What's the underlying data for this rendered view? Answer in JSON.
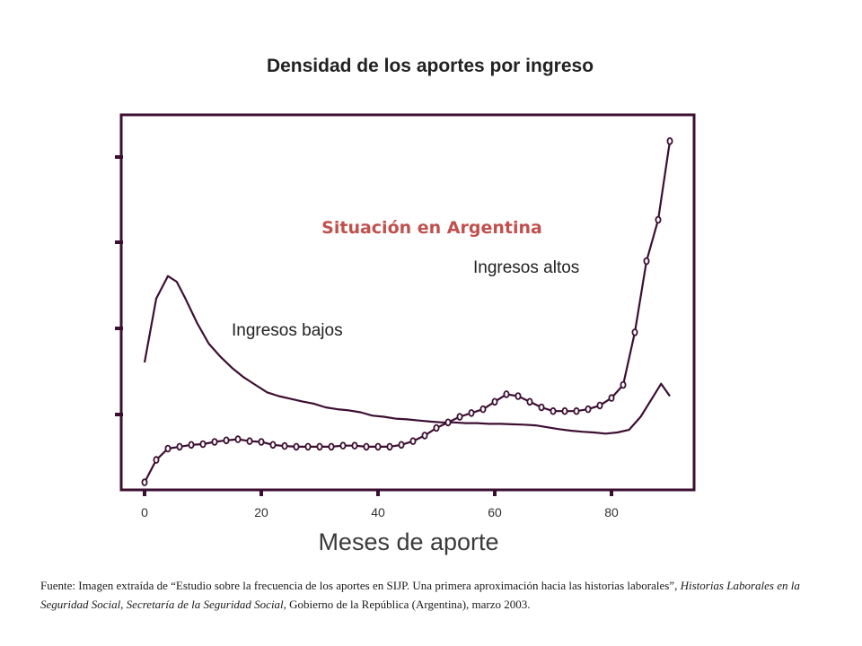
{
  "chart_data": {
    "type": "line",
    "title": "Densidad de los aportes por ingreso",
    "subtitle": "Situación en Argentina",
    "xlabel": "Meses de aporte",
    "ylabel": "",
    "x_ticks": [
      "0",
      "20",
      "40",
      "60",
      "80"
    ],
    "xlim": [
      0,
      92
    ],
    "ylim": [
      0,
      1
    ],
    "y_ticks_labeled": false,
    "colors": {
      "axes": "#3c0f32",
      "line": "#3c0f32",
      "subtitle": "#c0504d",
      "title": "#222222"
    },
    "series": [
      {
        "name": "Ingresos bajos",
        "marker": "none",
        "x": [
          0,
          2,
          4,
          5.5,
          7,
          9,
          11,
          13,
          15,
          17,
          19,
          21,
          23,
          25,
          27,
          29,
          31,
          33,
          35,
          37,
          39,
          41,
          43,
          45,
          47,
          49,
          51,
          53,
          55,
          57,
          59,
          61,
          63,
          65,
          67,
          69,
          71,
          73,
          75,
          77,
          79,
          81,
          83,
          85,
          87,
          88.5,
          90
        ],
        "y": [
          0.34,
          0.51,
          0.57,
          0.555,
          0.51,
          0.445,
          0.39,
          0.355,
          0.325,
          0.3,
          0.28,
          0.26,
          0.25,
          0.243,
          0.236,
          0.23,
          0.22,
          0.215,
          0.212,
          0.207,
          0.198,
          0.195,
          0.19,
          0.188,
          0.185,
          0.182,
          0.18,
          0.18,
          0.178,
          0.178,
          0.176,
          0.176,
          0.175,
          0.174,
          0.172,
          0.167,
          0.162,
          0.158,
          0.155,
          0.153,
          0.15,
          0.153,
          0.16,
          0.195,
          0.245,
          0.283,
          0.25
        ]
      },
      {
        "name": "Ingresos altos",
        "marker": "circle",
        "x": [
          0,
          2,
          4,
          6,
          8,
          10,
          12,
          14,
          16,
          18,
          20,
          22,
          24,
          26,
          28,
          30,
          32,
          34,
          36,
          38,
          40,
          42,
          44,
          46,
          48,
          50,
          52,
          54,
          56,
          58,
          60,
          62,
          64,
          66,
          68,
          70,
          72,
          74,
          76,
          78,
          80,
          82,
          84,
          86,
          88,
          90
        ],
        "y": [
          0.02,
          0.08,
          0.11,
          0.115,
          0.12,
          0.122,
          0.128,
          0.132,
          0.135,
          0.13,
          0.128,
          0.12,
          0.117,
          0.115,
          0.115,
          0.115,
          0.115,
          0.118,
          0.118,
          0.115,
          0.115,
          0.115,
          0.12,
          0.13,
          0.145,
          0.165,
          0.18,
          0.195,
          0.205,
          0.215,
          0.235,
          0.255,
          0.25,
          0.235,
          0.22,
          0.21,
          0.21,
          0.21,
          0.215,
          0.225,
          0.245,
          0.28,
          0.42,
          0.61,
          0.72,
          0.93
        ]
      }
    ],
    "annotations": [
      {
        "text": "Ingresos bajos",
        "series": "Ingresos bajos"
      },
      {
        "text": "Ingresos altos",
        "series": "Ingresos altos"
      }
    ],
    "grid": false,
    "legend": "none"
  },
  "source": {
    "prefix": "Fuente: Imagen extraída de “Estudio sobre la frecuencia de los aportes en SIJP. Una primera aproximación hacia las historias laborales”, ",
    "italic": "Historias Laborales en la Seguridad Social, Secretaría de la Seguridad Social",
    "suffix": ", Gobierno de la República (Argentina), marzo 2003."
  }
}
